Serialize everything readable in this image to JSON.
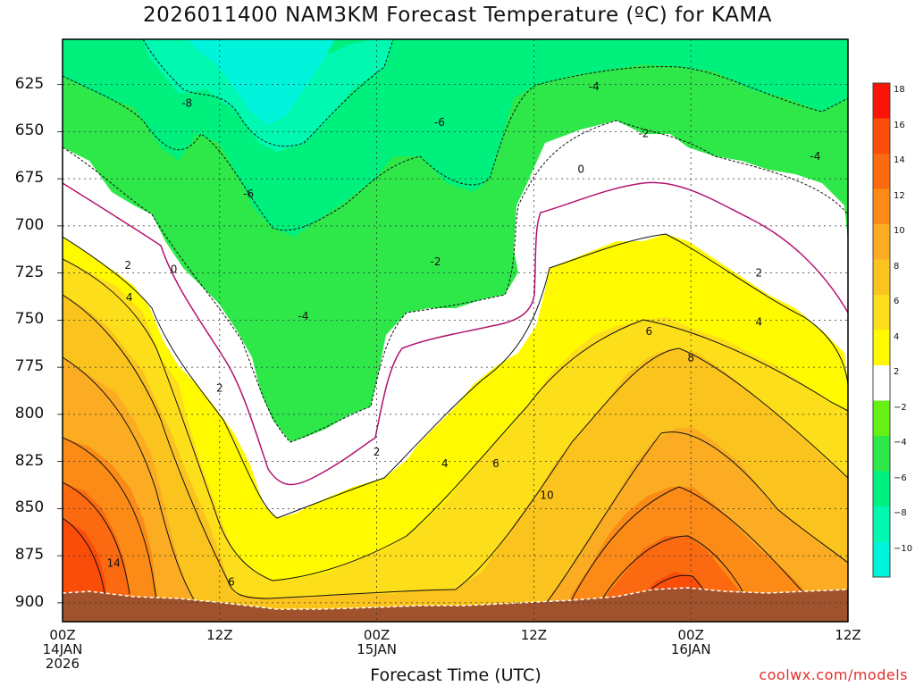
{
  "title": "2026011400 NAM3KM Forecast Temperature (ºC) for KAMA",
  "credit": "coolwx.com/models",
  "chart_data": {
    "type": "contour",
    "title": "2026011400 NAM3KM Forecast Temperature (ºC) for KAMA",
    "xlabel": "Forecast Time (UTC)",
    "ylabel": "",
    "x_range_hours": [
      0,
      60
    ],
    "y_range_hpa": [
      601,
      910
    ],
    "y_ticks": [
      625,
      650,
      675,
      700,
      725,
      750,
      775,
      800,
      825,
      850,
      875,
      900
    ],
    "x_ticks": [
      {
        "hour": 0,
        "label": "00Z",
        "sub": [
          "14JAN",
          "2026"
        ]
      },
      {
        "hour": 12,
        "label": "12Z",
        "sub": []
      },
      {
        "hour": 24,
        "label": "00Z",
        "sub": [
          "15JAN"
        ]
      },
      {
        "hour": 36,
        "label": "12Z",
        "sub": []
      },
      {
        "hour": 48,
        "label": "00Z",
        "sub": [
          "16JAN"
        ]
      },
      {
        "hour": 60,
        "label": "12Z",
        "sub": []
      }
    ],
    "grid": true,
    "colorbar": {
      "levels": [
        18,
        16,
        14,
        12,
        10,
        8,
        6,
        4,
        2,
        -2,
        -4,
        -6,
        -8,
        -10
      ],
      "colors": [
        "#f91408",
        "#fb4d0a",
        "#fb6a10",
        "#fb8b16",
        "#fbac22",
        "#fbc31d",
        "#fdde1a",
        "#fffa00",
        "#ffffff",
        "#66f014",
        "#2ee84a",
        "#00f07e",
        "#00f8b0",
        "#00f4dc"
      ]
    },
    "contour_labels": [
      {
        "text": "-8",
        "h": 9.5,
        "p": 635
      },
      {
        "text": "-6",
        "h": 14.2,
        "p": 683
      },
      {
        "text": "-6",
        "h": 28.8,
        "p": 645
      },
      {
        "text": "-4",
        "h": 40.6,
        "p": 626
      },
      {
        "text": "-2",
        "h": 44.4,
        "p": 651
      },
      {
        "text": "-4",
        "h": 57.5,
        "p": 663
      },
      {
        "text": "-4",
        "h": 18.4,
        "p": 748
      },
      {
        "text": "-2",
        "h": 28.5,
        "p": 719
      },
      {
        "text": "0",
        "h": 39.6,
        "p": 670
      },
      {
        "text": "0",
        "h": 8.5,
        "p": 723
      },
      {
        "text": "2",
        "h": 5.0,
        "p": 721
      },
      {
        "text": "4",
        "h": 5.1,
        "p": 738
      },
      {
        "text": "2",
        "h": 12.0,
        "p": 786
      },
      {
        "text": "2",
        "h": 24.0,
        "p": 820
      },
      {
        "text": "4",
        "h": 29.2,
        "p": 826
      },
      {
        "text": "6",
        "h": 33.1,
        "p": 826
      },
      {
        "text": "10",
        "h": 37.0,
        "p": 843
      },
      {
        "text": "6",
        "h": 44.8,
        "p": 756
      },
      {
        "text": "8",
        "h": 48.0,
        "p": 770
      },
      {
        "text": "2",
        "h": 53.2,
        "p": 725
      },
      {
        "text": "4",
        "h": 53.2,
        "p": 751
      },
      {
        "text": "14",
        "h": 3.9,
        "p": 879
      },
      {
        "text": "6",
        "h": 12.9,
        "p": 889
      }
    ]
  }
}
